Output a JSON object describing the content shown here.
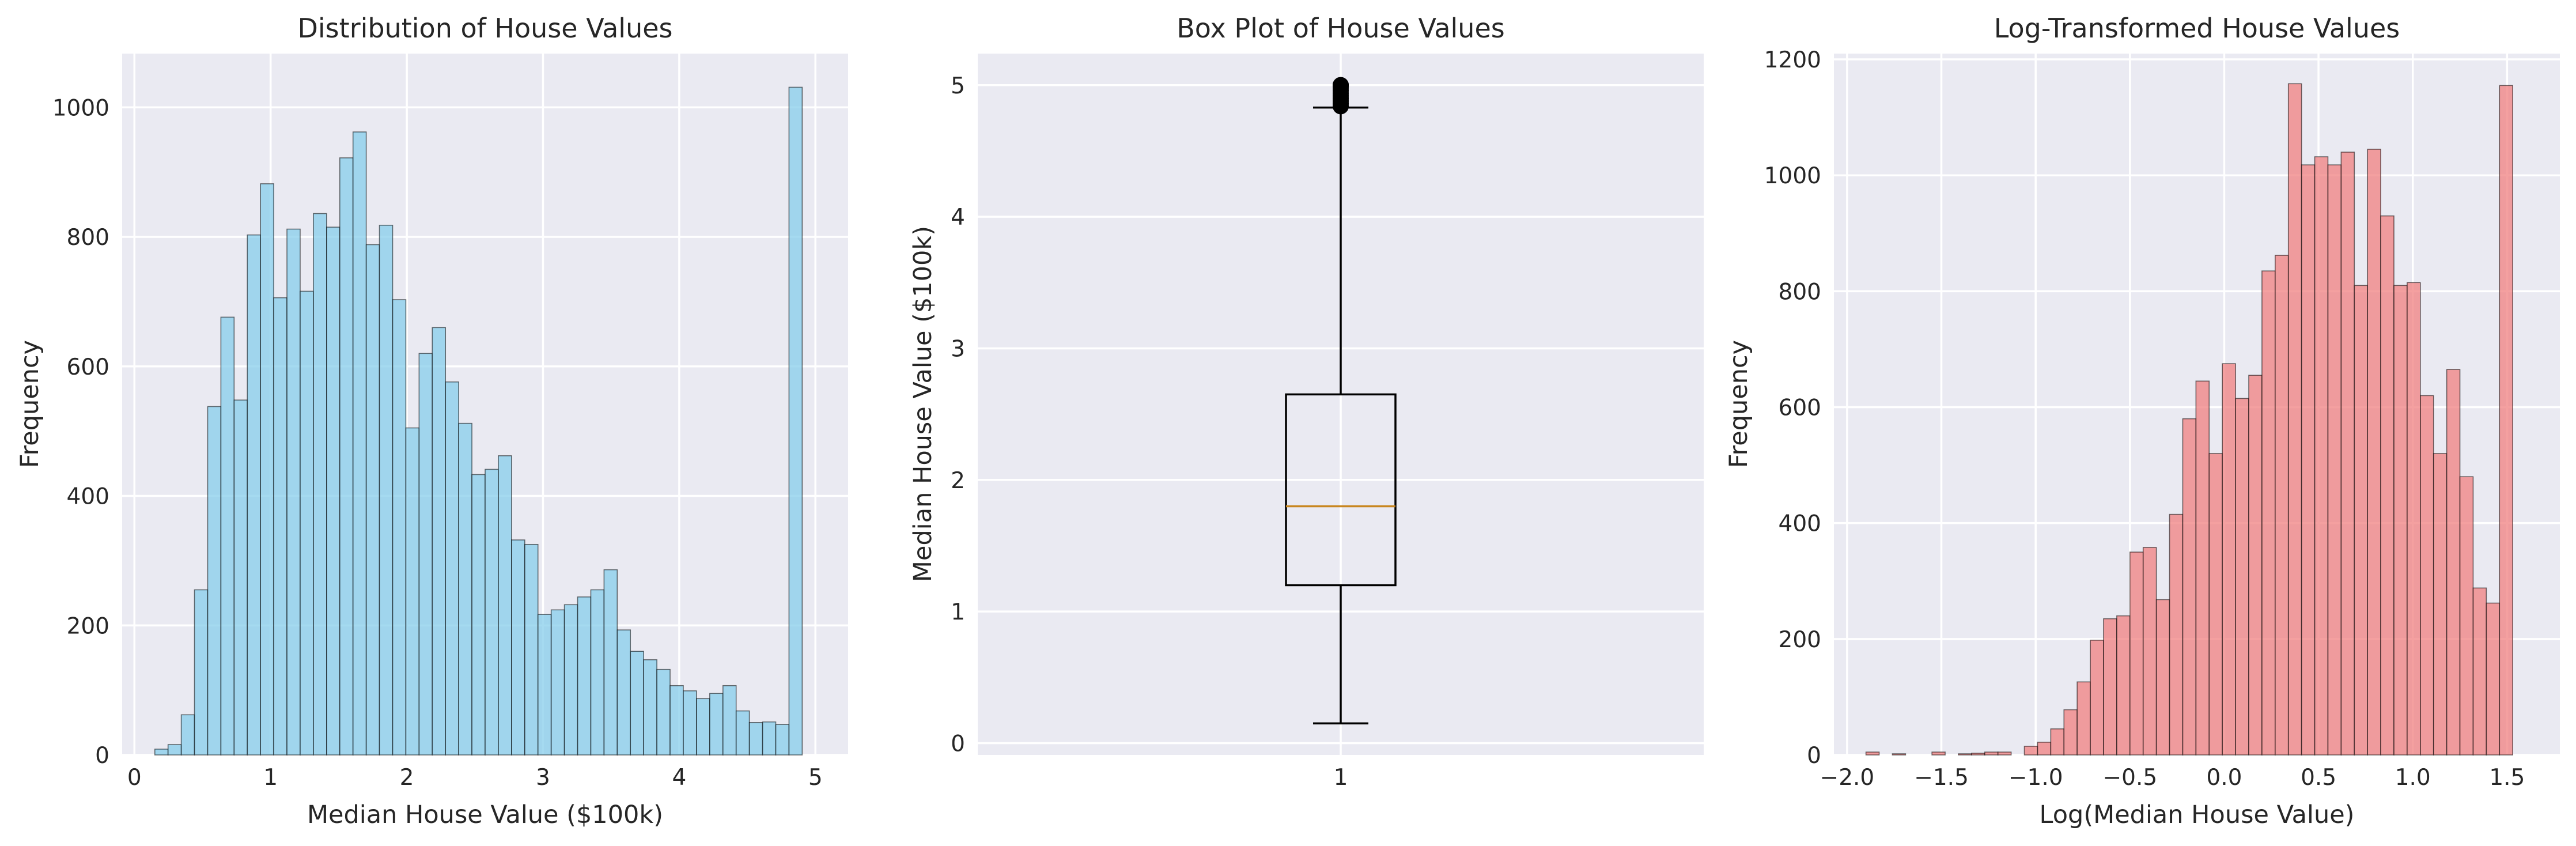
{
  "chart_data": [
    {
      "type": "bar",
      "subtype": "histogram",
      "title": "Distribution of House Values",
      "xlabel": "Median House Value ($100k)",
      "ylabel": "Frequency",
      "xlim": [
        -0.09,
        5.24
      ],
      "ylim": [
        0,
        1083
      ],
      "xticks": [
        "0",
        "1",
        "2",
        "3",
        "4",
        "5"
      ],
      "yticks": [
        "0",
        "200",
        "400",
        "600",
        "800",
        "1000"
      ],
      "bin_start": 0.15,
      "bin_width": 0.097,
      "bar_color": "#87ceeb",
      "edge_color": "#000000",
      "grid": true,
      "values": [
        9,
        16,
        62,
        255,
        538,
        676,
        548,
        803,
        882,
        706,
        812,
        716,
        836,
        815,
        922,
        962,
        788,
        818,
        703,
        505,
        620,
        660,
        576,
        512,
        433,
        441,
        462,
        332,
        325,
        217,
        224,
        232,
        244,
        255,
        286,
        193,
        160,
        147,
        132,
        107,
        99,
        87,
        95,
        107,
        68,
        50,
        51,
        47,
        1031
      ]
    },
    {
      "type": "box",
      "title": "Box Plot of House Values",
      "xlabel": "",
      "ylabel": "Median House Value ($100k)",
      "xticks": [
        "1"
      ],
      "yticks": [
        "0",
        "1",
        "2",
        "3",
        "4",
        "5"
      ],
      "ylim": [
        -0.09,
        5.24
      ],
      "whisker_low": 0.15,
      "q1": 1.2,
      "median": 1.8,
      "q3": 2.65,
      "whisker_high": 4.83,
      "outliers": [
        4.84,
        4.86,
        4.88,
        4.9,
        4.92,
        4.94,
        4.96,
        4.98,
        5.0,
        5.0,
        5.0
      ],
      "median_color": "#c8861f",
      "grid": true
    },
    {
      "type": "bar",
      "subtype": "histogram",
      "title": "Log-Transformed House Values",
      "xlabel": "Log(Median House Value)",
      "ylabel": "Frequency",
      "xlim": [
        -2.07,
        1.78
      ],
      "ylim": [
        0,
        1210
      ],
      "xticks": [
        "−2.0",
        "−1.5",
        "−1.0",
        "−0.5",
        "0.0",
        "0.5",
        "1.0",
        "1.5"
      ],
      "yticks": [
        "0",
        "200",
        "400",
        "600",
        "800",
        "1000",
        "1200"
      ],
      "bin_start": -1.9,
      "bin_width": 0.07,
      "bar_color": "#f08080",
      "edge_color": "#000000",
      "grid": true,
      "values": [
        5,
        0,
        2,
        0,
        0,
        5,
        0,
        2,
        3,
        5,
        5,
        0,
        15,
        22,
        45,
        78,
        126,
        198,
        235,
        240,
        350,
        358,
        268,
        415,
        580,
        645,
        520,
        675,
        615,
        655,
        835,
        862,
        1158,
        1018,
        1032,
        1018,
        1040,
        810,
        1045,
        930,
        810,
        815,
        620,
        520,
        665,
        480,
        288,
        262,
        1155
      ]
    }
  ]
}
